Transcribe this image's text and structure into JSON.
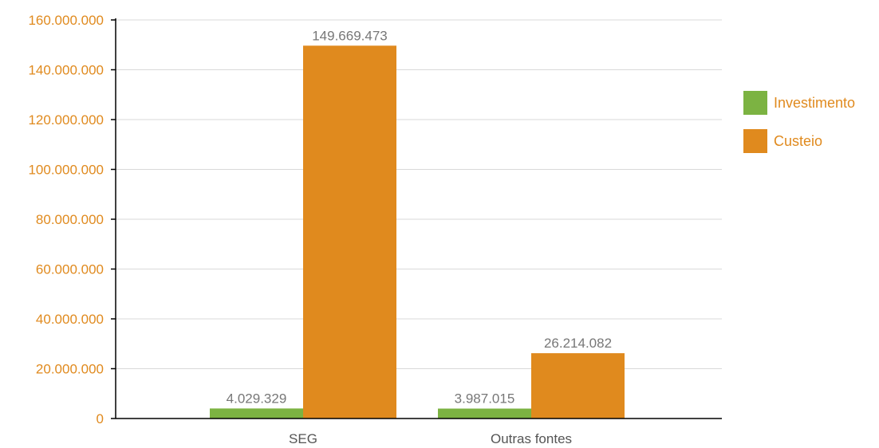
{
  "chart_data": {
    "type": "bar",
    "categories": [
      "SEG",
      "Outras fontes"
    ],
    "series": [
      {
        "name": "Investimento",
        "values": [
          4029329,
          3987015
        ],
        "labels": [
          "4.029.329",
          "3.987.015"
        ]
      },
      {
        "name": "Custeio",
        "values": [
          149669473,
          26214082
        ],
        "labels": [
          "149.669.473",
          "26.214.082"
        ]
      }
    ],
    "yticks": [
      "0",
      "20.000.000",
      "40.000.000",
      "60.000.000",
      "80.000.000",
      "100.000.000",
      "120.000.000",
      "140.000.000",
      "160.000.000"
    ],
    "ylim": [
      0,
      160000000
    ],
    "grid": true,
    "legend_position": "right",
    "title": "",
    "xlabel": "",
    "ylabel": ""
  },
  "colors": {
    "investimento": "#7cb342",
    "custeio": "#e08a1e",
    "tick_text": "#e08a1e",
    "legend_text": "#e08a1e",
    "axis": "#000000",
    "grid": "#d9d9d9"
  }
}
